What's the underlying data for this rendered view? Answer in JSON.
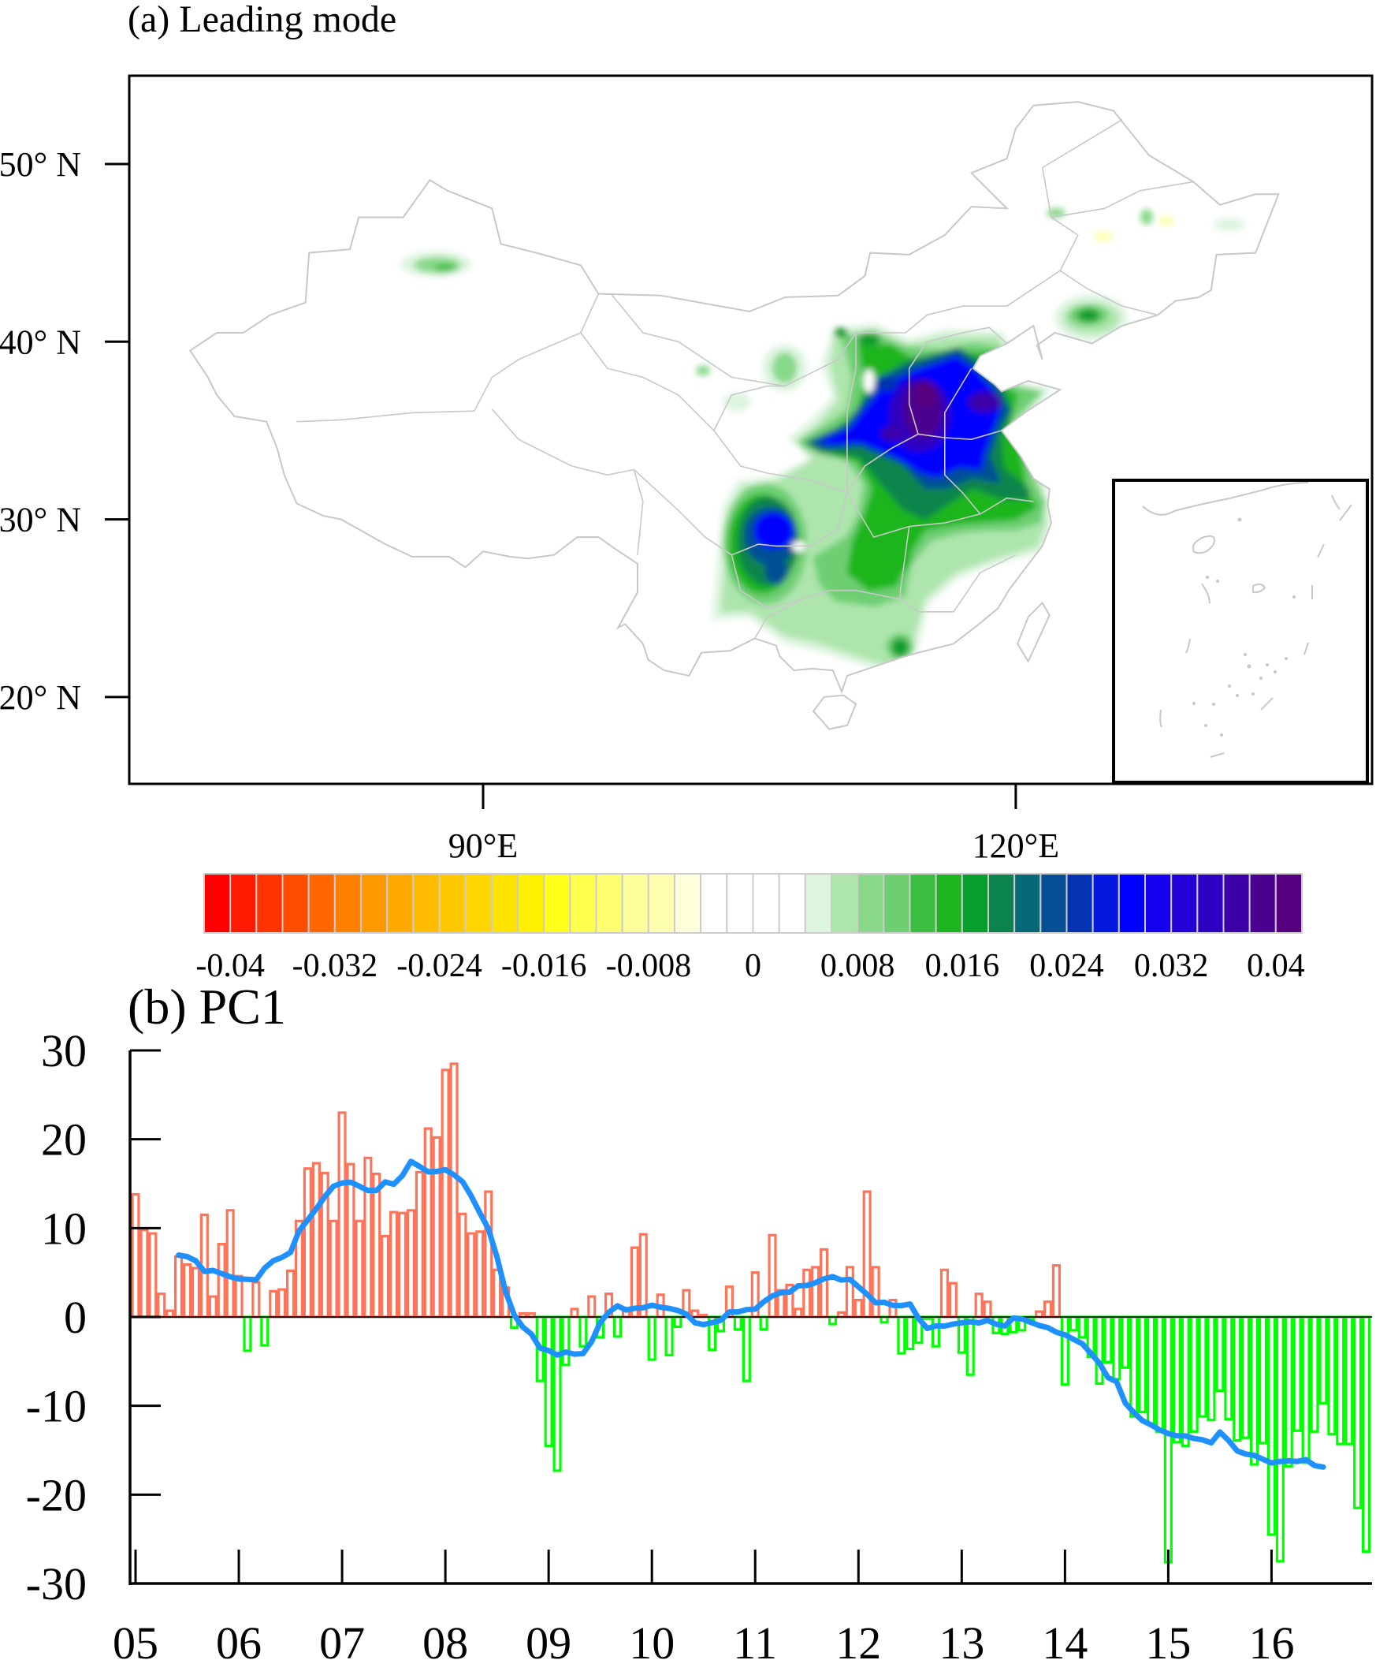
{
  "panel_a": {
    "title": "(a) Leading mode",
    "lat_labels": [
      "50° N",
      "40° N",
      "30° N",
      "20° N"
    ],
    "lat_values": [
      50,
      40,
      30,
      20
    ],
    "lon_labels": [
      "90°E",
      "120°E"
    ],
    "lon_values": [
      90,
      120
    ],
    "extent": {
      "lon": [
        70,
        140
      ],
      "lat": [
        15,
        55
      ]
    },
    "colorbar": {
      "labels": [
        "-0.04",
        "-0.032",
        "-0.024",
        "-0.016",
        "-0.008",
        "0",
        "0.008",
        "0.016",
        "0.024",
        "0.032",
        "0.04"
      ],
      "step": 0.002,
      "colors": [
        "#ff0000",
        "#ff1a00",
        "#ff3300",
        "#ff4d00",
        "#ff6600",
        "#ff8000",
        "#ff9900",
        "#ffaa00",
        "#ffbb00",
        "#ffc800",
        "#ffd500",
        "#ffe300",
        "#fff000",
        "#ffff1a",
        "#ffff4d",
        "#ffff70",
        "#ffff99",
        "#ffffb0",
        "#ffffdc",
        "#ffffff",
        "#ffffff",
        "#ffffff",
        "#ffffff",
        "#ddf4df",
        "#ade5ad",
        "#88d98a",
        "#6dcf72",
        "#3bbd3f",
        "#1db51f",
        "#089e2e",
        "#0a844c",
        "#076878",
        "#064f95",
        "#0333b0",
        "#0319df",
        "#0000ff",
        "#1600f0",
        "#2200d8",
        "#2e00c0",
        "#3b00a8",
        "#4b0090",
        "#560080"
      ]
    }
  },
  "chart_data": {
    "type": "bar",
    "title": "(b) PC1",
    "xlabel": "",
    "ylabel": "",
    "ylim": [
      -30,
      30
    ],
    "yticks": [
      30,
      20,
      10,
      0,
      -10,
      -20,
      -30
    ],
    "ytick_labels": [
      "30",
      "20",
      "10",
      "0",
      "-10",
      "-20",
      "-30"
    ],
    "xtick_labels": [
      "05",
      "06",
      "07",
      "08",
      "09",
      "10",
      "11",
      "12",
      "13",
      "14",
      "15",
      "16"
    ],
    "x_start": "2005-01",
    "frequency": "monthly",
    "positive_color": "#ff7458",
    "negative_color": "#00ff00",
    "line_color": "#1e90ff",
    "values": [
      13.8,
      9.8,
      9.4,
      2.6,
      0.7,
      6.8,
      5.9,
      5.5,
      11.5,
      2.3,
      8.2,
      12.0,
      4.6,
      -3.8,
      3.9,
      -3.2,
      2.9,
      3.1,
      5.2,
      10.8,
      16.7,
      17.3,
      16.2,
      10.8,
      23.0,
      17.2,
      10.8,
      17.9,
      16.1,
      9.1,
      11.8,
      11.7,
      12.0,
      16.3,
      21.2,
      20.2,
      27.8,
      28.5,
      11.6,
      9.4,
      9.6,
      14.1,
      5.3,
      3.3,
      -1.2,
      0.4,
      0.4,
      -7.2,
      -14.5,
      -17.3,
      -5.4,
      0.9,
      -3.3,
      2.3,
      -2.3,
      2.6,
      -2.2,
      1.0,
      7.8,
      9.3,
      -4.8,
      2.5,
      -4.3,
      -1.1,
      3.0,
      0.7,
      0.2,
      -3.7,
      -1.6,
      3.4,
      -1.4,
      -7.2,
      5.0,
      -1.4,
      9.2,
      3.0,
      3.6,
      0.9,
      5.3,
      5.6,
      7.6,
      -0.8,
      0.5,
      5.6,
      1.9,
      14.1,
      5.6,
      -0.6,
      1.9,
      -4.1,
      -3.6,
      -2.9,
      -0.2,
      -3.3,
      5.3,
      3.8,
      -4.0,
      -6.5,
      2.6,
      1.7,
      -1.8,
      -1.9,
      -1.7,
      -1.5,
      -0.3,
      0.6,
      1.7,
      5.8,
      -7.6,
      -1.5,
      -2.3,
      -4.5,
      -7.5,
      -5.1,
      -7.0,
      -5.7,
      -11.2,
      -10.7,
      -12.0,
      -12.9,
      -27.6,
      -14.1,
      -14.5,
      -12.9,
      -11.2,
      -11.6,
      -8.3,
      -11.5,
      -13.9,
      -13.6,
      -16.6,
      -14.2,
      -24.5,
      -27.5,
      -16.8,
      -12.8,
      -16.4,
      -12.9,
      -9.7,
      -13.2,
      -14.3,
      -14.3,
      -21.5,
      -26.4
    ],
    "running_mean_window": 11
  }
}
